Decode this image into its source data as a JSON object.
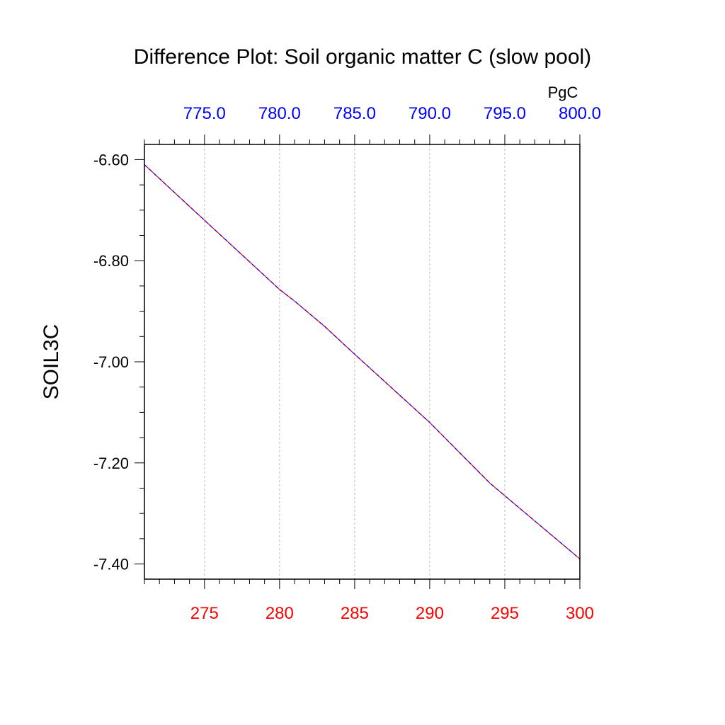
{
  "chart_data": {
    "type": "line",
    "title": "Difference Plot: Soil organic matter C (slow pool)",
    "ylabel": "SOIL3C",
    "top_axis_units": "PgC",
    "ylim": [
      -7.43,
      -6.57
    ],
    "bottom_axis": {
      "range": [
        271,
        300
      ],
      "ticks": [
        275,
        280,
        285,
        290,
        295,
        300
      ],
      "tick_labels": [
        "275",
        "280",
        "285",
        "290",
        "295",
        "300"
      ],
      "color": "#ff0000"
    },
    "top_axis": {
      "range": [
        771,
        800
      ],
      "ticks": [
        775,
        780,
        785,
        790,
        795,
        800
      ],
      "tick_labels": [
        "775.0",
        "780.0",
        "785.0",
        "790.0",
        "795.0",
        "800.0"
      ],
      "color": "#0000ff"
    },
    "y_ticks": [
      -6.6,
      -6.8,
      -7.0,
      -7.2,
      -7.4
    ],
    "y_tick_labels": [
      "-6.60",
      "-6.80",
      "-7.00",
      "-7.20",
      "-7.40"
    ],
    "grid": "vertical-dashed",
    "series": [
      {
        "axis": "bottom",
        "color": "#ff0000",
        "x": [
          271,
          275,
          280,
          281,
          283,
          285,
          290,
          294,
          295,
          300
        ],
        "y": [
          -6.61,
          -6.72,
          -6.857,
          -6.88,
          -6.93,
          -6.985,
          -7.12,
          -7.24,
          -7.265,
          -7.39
        ]
      },
      {
        "axis": "top",
        "color": "#0000ff",
        "x": [
          771,
          775,
          780,
          781,
          783,
          785,
          790,
          794,
          795,
          800
        ],
        "y": [
          -6.61,
          -6.72,
          -6.857,
          -6.88,
          -6.93,
          -6.985,
          -7.12,
          -7.24,
          -7.265,
          -7.39
        ]
      }
    ]
  }
}
